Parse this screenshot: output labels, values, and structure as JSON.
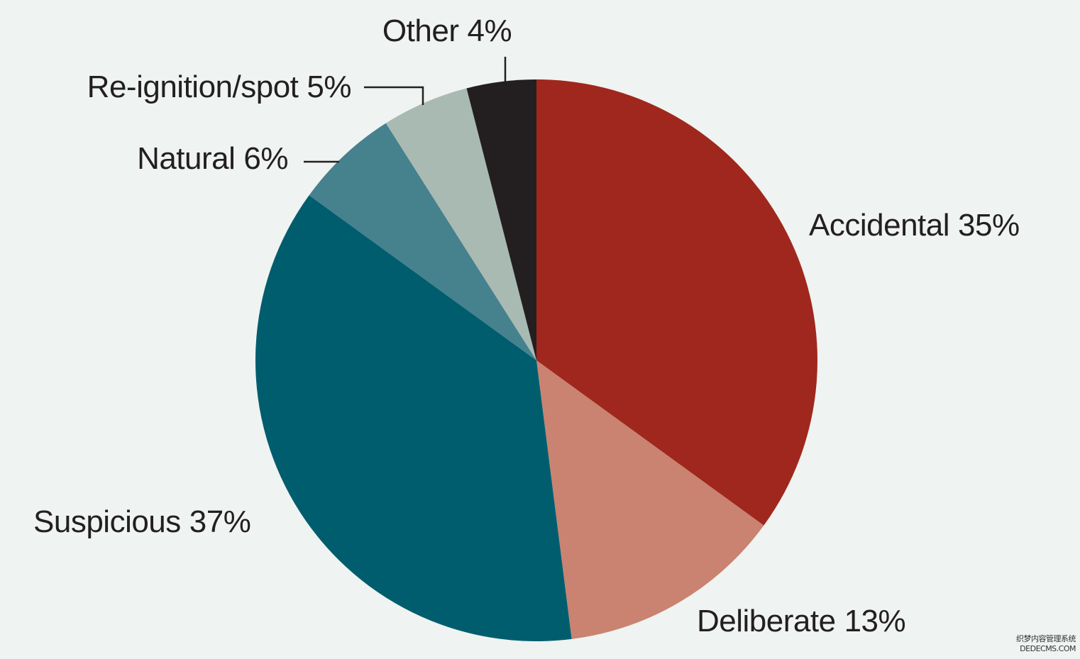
{
  "chart_data": {
    "type": "pie",
    "categories": [
      "Accidental",
      "Deliberate",
      "Suspicious",
      "Natural",
      "Re-ignition/spot",
      "Other"
    ],
    "values": [
      35,
      13,
      37,
      6,
      5,
      4
    ],
    "value_labels": [
      "35%",
      "13%",
      "37%",
      "6%",
      "5%",
      "4%"
    ],
    "colors": [
      "#a0271d",
      "#c98370",
      "#005d6e",
      "#46818e",
      "#a9bab2",
      "#231f20"
    ],
    "watermark": [
      "织梦内容管理系统",
      "DEDECMS.COM"
    ]
  }
}
